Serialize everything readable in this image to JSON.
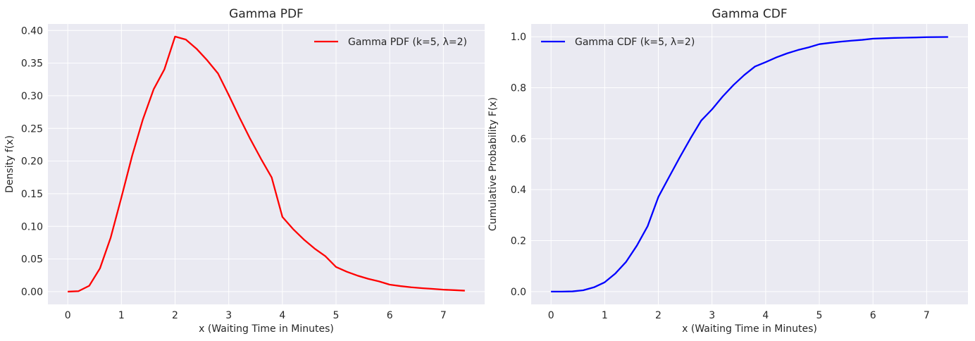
{
  "chart_data": [
    {
      "type": "line",
      "title": "Gamma PDF",
      "xlabel": "x (Waiting Time in Minutes)",
      "ylabel": "Density f(x)",
      "xlim": [
        -0.37,
        7.77
      ],
      "ylim": [
        -0.0195,
        0.41
      ],
      "xticks": [
        0,
        1,
        2,
        3,
        4,
        5,
        6,
        7
      ],
      "xtick_labels": [
        "0",
        "1",
        "2",
        "3",
        "4",
        "5",
        "6",
        "7"
      ],
      "yticks": [
        0,
        0.05,
        0.1,
        0.15,
        0.2,
        0.25,
        0.3,
        0.35,
        0.4
      ],
      "ytick_labels": [
        "0.00",
        "0.05",
        "0.10",
        "0.15",
        "0.20",
        "0.25",
        "0.30",
        "0.35",
        "0.40"
      ],
      "grid": true,
      "legend": "top-right",
      "series": [
        {
          "name": "Gamma PDF (k=5, λ=2)",
          "color": "#ff0000",
          "x": [
            0,
            0.2,
            0.4,
            0.6,
            0.8,
            1.0,
            1.2,
            1.4,
            1.6,
            1.8,
            2.0,
            2.2,
            2.4,
            2.6,
            2.8,
            3.0,
            3.2,
            3.4,
            3.6,
            3.8,
            4.0,
            4.2,
            4.4,
            4.6,
            4.8,
            5.0,
            5.2,
            5.4,
            5.6,
            5.8,
            6.0,
            6.2,
            6.4,
            6.6,
            6.8,
            7.0,
            7.2,
            7.4
          ],
          "values": [
            0,
            0.0007,
            0.009,
            0.0356,
            0.0828,
            0.1444,
            0.2081,
            0.2638,
            0.3098,
            0.3403,
            0.3907,
            0.3861,
            0.372,
            0.3542,
            0.3342,
            0.3012,
            0.2667,
            0.234,
            0.2036,
            0.1749,
            0.1145,
            0.0958,
            0.0798,
            0.066,
            0.0544,
            0.0378,
            0.0305,
            0.0245,
            0.0196,
            0.0157,
            0.0107,
            0.0085,
            0.0067,
            0.0053,
            0.0042,
            0.003,
            0.0023,
            0.0015
          ]
        }
      ]
    },
    {
      "type": "line",
      "title": "Gamma CDF",
      "xlabel": "x (Waiting Time in Minutes)",
      "ylabel": "Cumulative Probability F(x)",
      "xlim": [
        -0.37,
        7.77
      ],
      "ylim": [
        -0.05,
        1.05
      ],
      "xticks": [
        0,
        1,
        2,
        3,
        4,
        5,
        6,
        7
      ],
      "xtick_labels": [
        "0",
        "1",
        "2",
        "3",
        "4",
        "5",
        "6",
        "7"
      ],
      "yticks": [
        0,
        0.2,
        0.4,
        0.6,
        0.8,
        1.0
      ],
      "ytick_labels": [
        "0.0",
        "0.2",
        "0.4",
        "0.6",
        "0.8",
        "1.0"
      ],
      "grid": true,
      "legend": "top-left",
      "series": [
        {
          "name": "Gamma CDF (k=5, λ=2)",
          "color": "#0000ff",
          "x": [
            0,
            0.2,
            0.4,
            0.6,
            0.8,
            1.0,
            1.2,
            1.4,
            1.6,
            1.8,
            2.0,
            2.2,
            2.4,
            2.6,
            2.8,
            3.0,
            3.2,
            3.4,
            3.6,
            3.8,
            4.0,
            4.2,
            4.4,
            4.6,
            4.8,
            5.0,
            5.2,
            5.4,
            5.6,
            5.8,
            6.0,
            6.2,
            6.4,
            6.6,
            6.8,
            7.0,
            7.2,
            7.4
          ],
          "values": [
            0,
            6e-05,
            0.001,
            0.0054,
            0.0169,
            0.0366,
            0.0714,
            0.1171,
            0.1806,
            0.2566,
            0.3712,
            0.4496,
            0.5272,
            0.6015,
            0.6713,
            0.7149,
            0.7656,
            0.8105,
            0.8495,
            0.8829,
            0.9004,
            0.9189,
            0.9346,
            0.9476,
            0.9582,
            0.9707,
            0.9759,
            0.9805,
            0.9844,
            0.9876,
            0.9924,
            0.9939,
            0.9952,
            0.9962,
            0.997,
            0.9981,
            0.9985,
            0.9989
          ]
        }
      ]
    }
  ]
}
